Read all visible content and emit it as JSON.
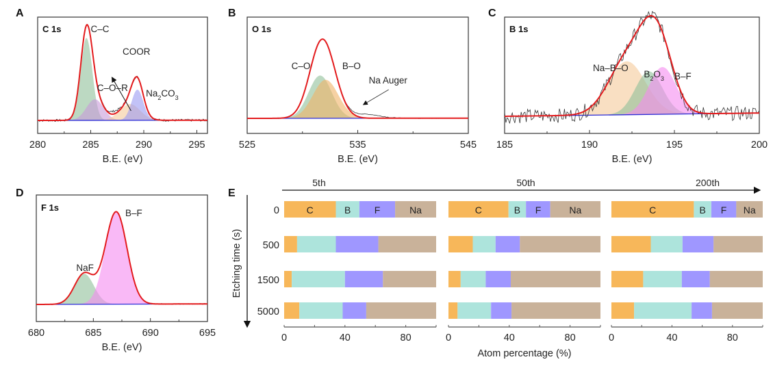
{
  "chart_data": [
    {
      "id": "A",
      "type": "line",
      "panel_letter": "A",
      "title": "C 1s",
      "xlabel": "B.E. (eV)",
      "xlim": [
        280,
        296
      ],
      "xticks": [
        280,
        285,
        290,
        295
      ],
      "components": [
        {
          "name": "C–C",
          "center": 284.6,
          "height": 0.86,
          "width": 0.55,
          "color": "#8fbf9a"
        },
        {
          "name": "C–O–R",
          "center": 285.4,
          "height": 0.22,
          "width": 0.8,
          "color": "#c89ad8"
        },
        {
          "name": "COOR",
          "center": 288.7,
          "height": 0.17,
          "width": 0.95,
          "color": "#f5c99a"
        },
        {
          "name": "Na2CO3",
          "center": 289.4,
          "height": 0.32,
          "width": 0.55,
          "color": "#9a9af2"
        }
      ],
      "annotations": [
        {
          "text": "C–C",
          "x": 285.0
        },
        {
          "text": "COOR",
          "x": 288.0,
          "arrow": true
        },
        {
          "text": "C–O–R",
          "x": 285.6
        },
        {
          "text": "Na",
          "sub": "2",
          "text2": "CO",
          "sub2": "3",
          "x": 290.2
        }
      ]
    },
    {
      "id": "B",
      "type": "line",
      "panel_letter": "B",
      "title": "O 1s",
      "xlabel": "B.E. (eV)",
      "xlim": [
        525,
        545
      ],
      "xticks": [
        525,
        535,
        545
      ],
      "components": [
        {
          "name": "C–O",
          "center": 531.6,
          "height": 0.5,
          "width": 1.05,
          "color": "#8fbf9a"
        },
        {
          "name": "B–O",
          "center": 532.1,
          "height": 0.45,
          "width": 1.15,
          "color": "#f0b366"
        }
      ],
      "annotations": [
        {
          "text": "C–O",
          "x": 529.0
        },
        {
          "text": "B–O",
          "x": 533.6
        },
        {
          "text": "Na Auger",
          "x": 536.0,
          "arrow": true
        }
      ]
    },
    {
      "id": "C",
      "type": "line",
      "panel_letter": "C",
      "title": "B 1s",
      "xlabel": "B.E. (eV)",
      "xlim": [
        185,
        200
      ],
      "xticks": [
        185,
        190,
        195,
        200
      ],
      "components": [
        {
          "name": "Na–B–O",
          "center": 192.2,
          "height": 0.52,
          "width": 1.1,
          "color": "#f5c99a"
        },
        {
          "name": "B2O3",
          "center": 193.5,
          "height": 0.42,
          "width": 0.8,
          "color": "#8fbf9a"
        },
        {
          "name": "B–F",
          "center": 194.3,
          "height": 0.46,
          "width": 0.8,
          "color": "#f58af0"
        }
      ],
      "annotations": [
        {
          "text": "Na–B–O",
          "x": 190.2
        },
        {
          "text": "B",
          "sub": "2",
          "text2": "O",
          "sub2": "3",
          "x": 193.2
        },
        {
          "text": "B–F",
          "x": 195.0
        }
      ]
    },
    {
      "id": "D",
      "type": "line",
      "panel_letter": "D",
      "title": "F 1s",
      "xlabel": "B.E. (eV)",
      "xlim": [
        680,
        695
      ],
      "xticks": [
        680,
        685,
        690,
        695
      ],
      "components": [
        {
          "name": "NaF",
          "center": 684.2,
          "height": 0.33,
          "width": 0.85,
          "color": "#8fbf9a"
        },
        {
          "name": "B–F",
          "center": 687.0,
          "height": 1.0,
          "width": 0.95,
          "color": "#f58af0"
        }
      ],
      "annotations": [
        {
          "text": "NaF",
          "x": 683.5
        },
        {
          "text": "B–F",
          "x": 687.8
        }
      ]
    },
    {
      "id": "E",
      "type": "bar",
      "stacked": true,
      "orientation": "horizontal",
      "panel_letter": "E",
      "ylabel": "Etching time (s)",
      "xlabel": "Atom percentage (%)",
      "xlim": [
        0,
        100
      ],
      "xticks": [
        0,
        40,
        80
      ],
      "categories": [
        "0",
        "500",
        "1500",
        "5000"
      ],
      "elements": [
        "C",
        "B",
        "F",
        "Na"
      ],
      "colors": {
        "C": "#f7b75a",
        "B": "#ade4dc",
        "F": "#9f97ff",
        "Na": "#c9b29a"
      },
      "cycle_arrow": true,
      "groups": [
        {
          "name": "5th",
          "series": [
            {
              "name": "C",
              "values": [
                34,
                8.5,
                5,
                10
              ]
            },
            {
              "name": "B",
              "values": [
                15.5,
                25.5,
                35,
                28.5
              ]
            },
            {
              "name": "F",
              "values": [
                23.5,
                28,
                25,
                15.5
              ]
            },
            {
              "name": "Na",
              "values": [
                27,
                38,
                35,
                46
              ]
            }
          ]
        },
        {
          "name": "50th",
          "series": [
            {
              "name": "C",
              "values": [
                39.5,
                16,
                8,
                6
              ]
            },
            {
              "name": "B",
              "values": [
                11.5,
                15,
                16.5,
                22
              ]
            },
            {
              "name": "F",
              "values": [
                16,
                16,
                16.5,
                13.5
              ]
            },
            {
              "name": "Na",
              "values": [
                33,
                53,
                59,
                58.5
              ]
            }
          ]
        },
        {
          "name": "200th",
          "series": [
            {
              "name": "C",
              "values": [
                54.5,
                26,
                21,
                15
              ]
            },
            {
              "name": "B",
              "values": [
                11.5,
                21,
                25.5,
                38
              ]
            },
            {
              "name": "F",
              "values": [
                16.5,
                20.5,
                18.5,
                13.5
              ]
            },
            {
              "name": "Na",
              "values": [
                17.5,
                32.5,
                35,
                33.5
              ]
            }
          ]
        }
      ]
    }
  ]
}
